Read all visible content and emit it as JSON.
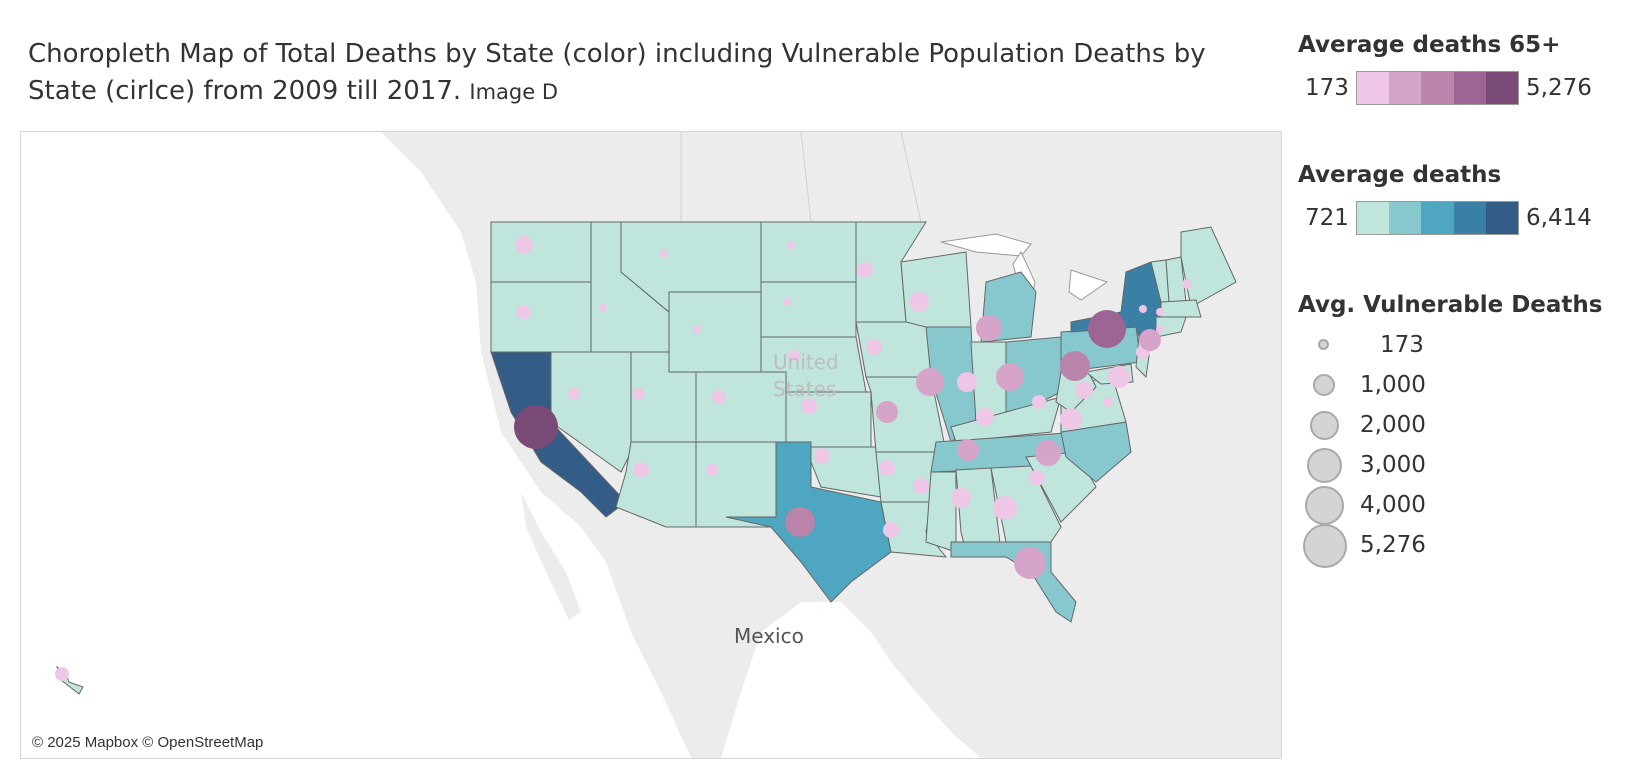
{
  "title": {
    "main": "Choropleth Map of Total Deaths by State (color) including Vulnerable Population Deaths by State (cirlce) from 2009 till 2017.",
    "sub": "Image D"
  },
  "map": {
    "labels": {
      "country_us": [
        "United",
        "States"
      ],
      "mexico": "Mexico"
    },
    "attribution": "© 2025 Mapbox © OpenStreetMap",
    "colors": {
      "water": "#ffffff",
      "land": "#ececec",
      "state_border": "#666666"
    }
  },
  "legend_elderly": {
    "title": "Average deaths 65+",
    "min_label": "173",
    "max_label": "5,276",
    "colors": [
      "#eec7e7",
      "#d6a3c9",
      "#bb84aa",
      "#9c6595",
      "#7a4a79"
    ]
  },
  "legend_total": {
    "title": "Average deaths",
    "min_label": "721",
    "max_label": "6,414",
    "colors": [
      "#bfe5dc",
      "#87c8cf",
      "#4ea6c0",
      "#3a80a5",
      "#335d86"
    ]
  },
  "legend_size": {
    "title": "Avg. Vulnerable Deaths",
    "items": [
      {
        "label": "173",
        "value": 173
      },
      {
        "label": "1,000",
        "value": 1000
      },
      {
        "label": "2,000",
        "value": 2000
      },
      {
        "label": "3,000",
        "value": 3000
      },
      {
        "label": "4,000",
        "value": 4000
      },
      {
        "label": "5,276",
        "value": 5276
      }
    ]
  }
}
